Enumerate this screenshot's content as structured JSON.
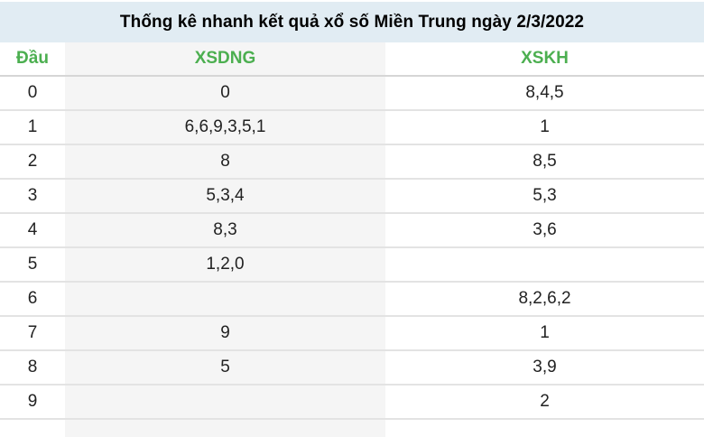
{
  "title": "Thống kê nhanh kết quả xổ số Miền Trung ngày 2/3/2022",
  "table": {
    "columns": [
      {
        "key": "dau",
        "label": "Đầu"
      },
      {
        "key": "xsdng",
        "label": "XSDNG"
      },
      {
        "key": "xskh",
        "label": "XSKH"
      }
    ],
    "rows": [
      {
        "dau": "0",
        "xsdng": "0",
        "xskh": "8,4,5"
      },
      {
        "dau": "1",
        "xsdng": "6,6,9,3,5,1",
        "xskh": "1"
      },
      {
        "dau": "2",
        "xsdng": "8",
        "xskh": "8,5"
      },
      {
        "dau": "3",
        "xsdng": "5,3,4",
        "xskh": "5,3"
      },
      {
        "dau": "4",
        "xsdng": "8,3",
        "xskh": "3,6"
      },
      {
        "dau": "5",
        "xsdng": "1,2,0",
        "xskh": ""
      },
      {
        "dau": "6",
        "xsdng": "",
        "xskh": "8,2,6,2"
      },
      {
        "dau": "7",
        "xsdng": "9",
        "xskh": "1"
      },
      {
        "dau": "8",
        "xsdng": "5",
        "xskh": "3,9"
      },
      {
        "dau": "9",
        "xsdng": "",
        "xskh": "2"
      }
    ]
  },
  "colors": {
    "title_bg": "#e1ecf3",
    "header_green": "#4caf50",
    "stripe_bg": "#f5f5f5",
    "row_border": "#e3e3e3",
    "header_border": "#d6d6d6",
    "text": "#222222",
    "page_bg": "#ffffff"
  }
}
